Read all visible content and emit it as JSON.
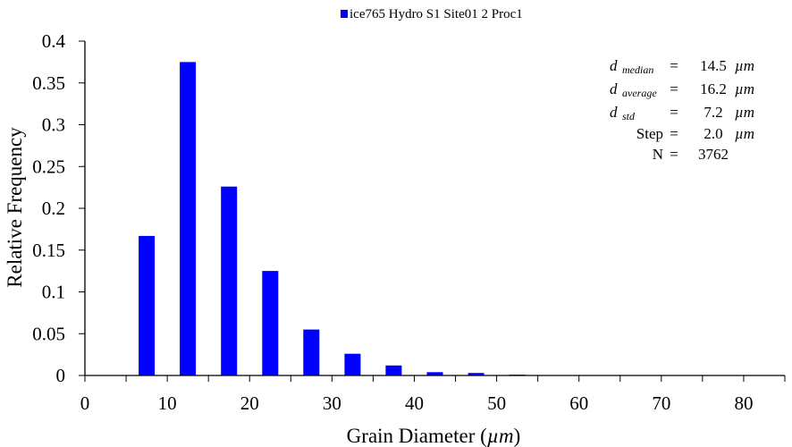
{
  "chart_data": {
    "type": "bar",
    "title": "",
    "xlabel": "Grain Diameter (",
    "xlabel_unit": "µm",
    "xlabel_close": ")",
    "ylabel": "Relative Frequency",
    "xlim": [
      0,
      85
    ],
    "ylim": [
      0,
      0.4
    ],
    "xticks": [
      0,
      10,
      20,
      30,
      40,
      50,
      60,
      70,
      80
    ],
    "yticks": [
      0,
      0.05,
      0.1,
      0.15,
      0.2,
      0.25,
      0.3,
      0.35,
      0.4
    ],
    "ytick_labels": [
      "0",
      "0.05",
      "0.1",
      "0.15",
      "0.2",
      "0.25",
      "0.3",
      "0.35",
      "0.4"
    ],
    "grid": false,
    "legend_position": "top-center",
    "bar_color": "#0000ff",
    "series": [
      {
        "name": "ice765 Hydro S1 Site01 2 Proc1",
        "x": [
          7.5,
          12.5,
          17.5,
          22.5,
          27.5,
          32.5,
          37.5,
          42.5,
          47.5,
          52.5,
          57.5,
          62.5,
          67.5,
          72.5,
          77.5,
          82.5
        ],
        "values": [
          0.167,
          0.375,
          0.226,
          0.125,
          0.055,
          0.026,
          0.012,
          0.004,
          0.003,
          0.001,
          0.0005,
          0.0003,
          0.0,
          0.0003,
          0.0,
          0.0
        ]
      }
    ],
    "annotations": {
      "rows": [
        {
          "sym": "d",
          "sub": "median",
          "eq": "=",
          "val": "14.5",
          "unit": "µm"
        },
        {
          "sym": "d",
          "sub": "average",
          "eq": "=",
          "val": "16.2",
          "unit": "µm"
        },
        {
          "sym": "d",
          "sub": "std",
          "eq": "=",
          "val": "7.2",
          "unit": "µm"
        },
        {
          "sym": "Step",
          "sub": "",
          "eq": "=",
          "val": "2.0",
          "unit": "µm"
        },
        {
          "sym": "N",
          "sub": "",
          "eq": "=",
          "val": "3762",
          "unit": ""
        }
      ]
    }
  }
}
